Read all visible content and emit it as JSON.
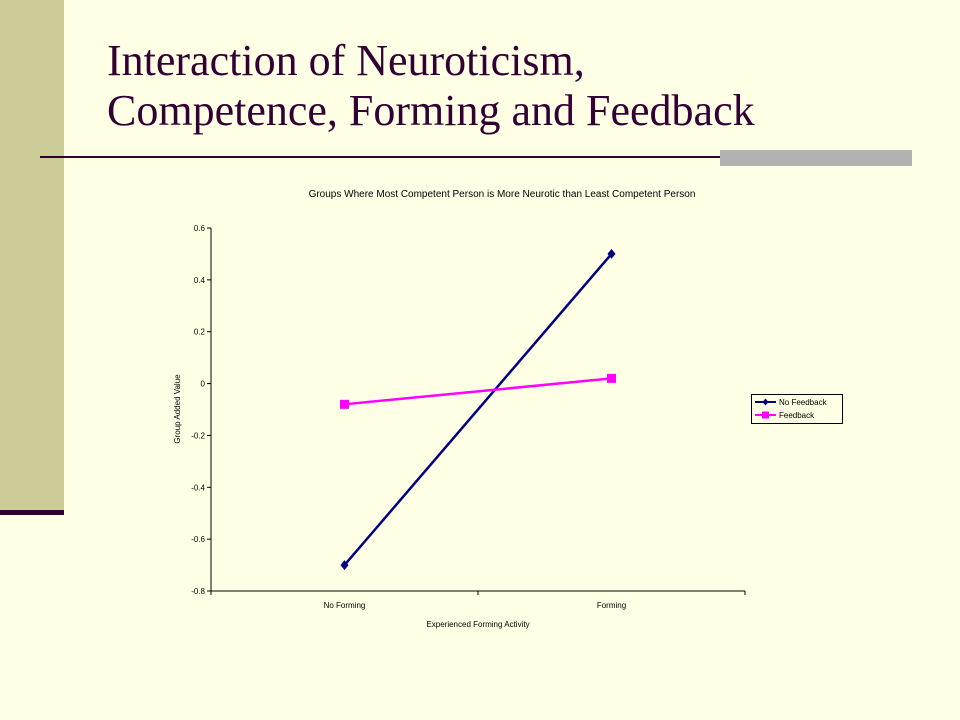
{
  "slide": {
    "title_lines": [
      "Interaction of Neuroticism,",
      "Competence, Forming and Feedback"
    ]
  },
  "colors": {
    "background": "#ffffe6",
    "accent_band": "#cccc99",
    "title_text": "#330033",
    "series_no_feedback": "#000080",
    "series_feedback": "#ff00ff"
  },
  "chart_data": {
    "type": "line",
    "title": "Groups Where Most Competent Person is More Neurotic than Least Competent Person",
    "xlabel": "Experienced Forming Activity",
    "ylabel": "Group Added Value",
    "categories": [
      "No Forming",
      "Forming"
    ],
    "ylim": [
      -0.8,
      0.6
    ],
    "yticks": [
      0.6,
      0.4,
      0.2,
      0,
      -0.2,
      -0.4,
      -0.6,
      -0.8
    ],
    "ytick_labels": [
      "0.6",
      "0.4",
      "0.2",
      "0",
      "-0.2",
      "-0.4",
      "-0.6",
      "-0.8"
    ],
    "grid": false,
    "legend_position": "right",
    "series": [
      {
        "name": "No Feedback",
        "values": [
          -0.7,
          0.5
        ],
        "color": "#000080",
        "marker": "diamond"
      },
      {
        "name": "Feedback",
        "values": [
          -0.08,
          0.02
        ],
        "color": "#ff00ff",
        "marker": "square"
      }
    ]
  }
}
